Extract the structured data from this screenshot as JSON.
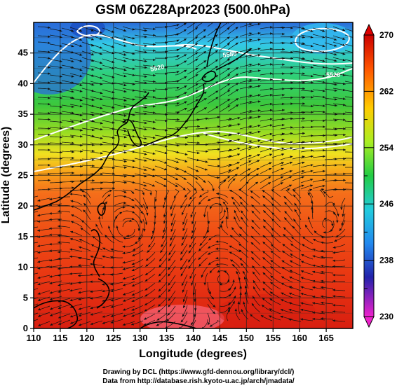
{
  "title": "GSM 06Z28Apr2023 (500.0hPa)",
  "x_axis": {
    "label": "Longitude (degrees)",
    "range": [
      110,
      170
    ],
    "ticks": [
      "110",
      "115",
      "120",
      "125",
      "130",
      "135",
      "140",
      "145",
      "150",
      "155",
      "160",
      "165"
    ]
  },
  "y_axis": {
    "label": "Latitude  (degrees)",
    "range": [
      0,
      50
    ],
    "ticks": [
      "0",
      "5",
      "10",
      "15",
      "20",
      "25",
      "30",
      "35",
      "40",
      "45"
    ]
  },
  "colorbar": {
    "labels": [
      "270",
      "262",
      "254",
      "246",
      "238",
      "230"
    ],
    "range": [
      230,
      270
    ],
    "colors": [
      "#ff33cc",
      "#3333cc",
      "#33ccff",
      "#33cc33",
      "#ffff33",
      "#ff6600",
      "#cc0000"
    ]
  },
  "contours": {
    "labels": [
      "5520",
      "5580",
      "5520"
    ]
  },
  "credits": {
    "line1": "Drawing by DCL (https://www.gfd-dennou.org/library/dcl/)",
    "line2": "Data from http://database.rish.kyoto-u.ac.jp/arch/jmadata/"
  }
}
